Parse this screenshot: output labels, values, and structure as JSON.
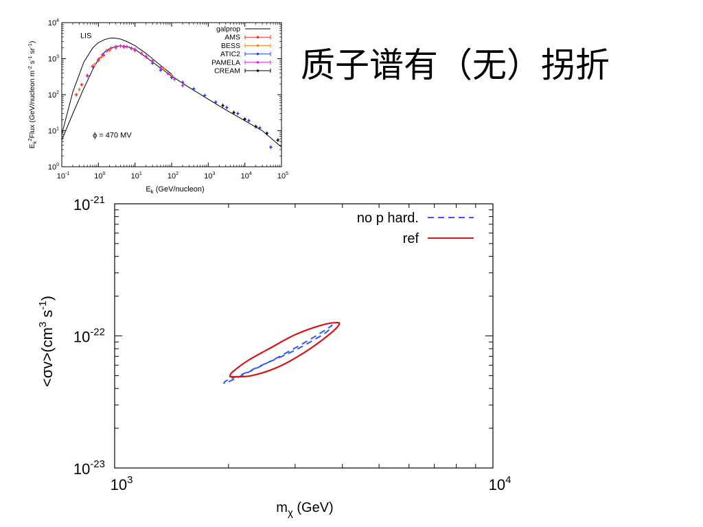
{
  "slide": {
    "title": "质子谱有（无）拐折"
  },
  "chart_data": [
    {
      "type": "scatter",
      "xlabel": "E_k (GeV/nucleon)",
      "ylabel": "E_k^2 Flux (GeV/nucleon m^-2 s^-1 sr^-1)",
      "xscale": "log",
      "yscale": "log",
      "xlim": [
        0.1,
        100000
      ],
      "ylim": [
        1,
        10000
      ],
      "xticks": [
        {
          "base": "10",
          "exp": "-1",
          "value": 0.1
        },
        {
          "base": "10",
          "exp": "0",
          "value": 1
        },
        {
          "base": "10",
          "exp": "1",
          "value": 10
        },
        {
          "base": "10",
          "exp": "2",
          "value": 100
        },
        {
          "base": "10",
          "exp": "3",
          "value": 1000
        },
        {
          "base": "10",
          "exp": "4",
          "value": 10000
        },
        {
          "base": "10",
          "exp": "5",
          "value": 100000
        }
      ],
      "yticks": [
        {
          "base": "10",
          "exp": "0",
          "value": 1
        },
        {
          "base": "10",
          "exp": "1",
          "value": 10
        },
        {
          "base": "10",
          "exp": "2",
          "value": 100
        },
        {
          "base": "10",
          "exp": "3",
          "value": 1000
        },
        {
          "base": "10",
          "exp": "4",
          "value": 10000
        }
      ],
      "annotations": [
        {
          "text": "LIS",
          "x": 0.32,
          "y": 3700
        },
        {
          "text": "ϕ = 470 MV",
          "x": 0.7,
          "y": 6.5
        }
      ],
      "legend_position": "top-right",
      "series": [
        {
          "name": "galprop",
          "kind": "line",
          "color": "#000000",
          "x": [
            0.1,
            0.2,
            0.4,
            0.7,
            1,
            1.5,
            2,
            3,
            4,
            6,
            10,
            20,
            50,
            100,
            300,
            1000,
            3000,
            10000,
            30000,
            100000
          ],
          "y": [
            5.5,
            30,
            150,
            500,
            950,
            1550,
            1900,
            2200,
            2250,
            2200,
            1800,
            1100,
            550,
            330,
            160,
            75,
            38,
            19,
            10,
            3.5
          ]
        },
        {
          "name": "",
          "kind": "line",
          "color": "#000000",
          "x": [
            0.1,
            0.2,
            0.4,
            0.7,
            1,
            1.5,
            2,
            2.5,
            3,
            4,
            6,
            10,
            20,
            50,
            100
          ],
          "y": [
            8,
            120,
            800,
            2000,
            2800,
            3400,
            3700,
            3750,
            3700,
            3500,
            3000,
            2300,
            1400,
            650,
            370
          ]
        },
        {
          "name": "AMS",
          "kind": "points",
          "color": "#ff2a1a",
          "marker": "triangle-down",
          "x": [
            0.25,
            0.35,
            0.5,
            0.7,
            1.0,
            1.4,
            2,
            3,
            5,
            10,
            20,
            50,
            100
          ],
          "y": [
            100,
            190,
            330,
            600,
            900,
            1250,
            1700,
            2000,
            2100,
            1700,
            1150,
            560,
            340
          ]
        },
        {
          "name": "BESS",
          "kind": "points",
          "color": "#ff8000",
          "marker": "triangle-up",
          "x": [
            0.3,
            0.5,
            0.8,
            1.2,
            2,
            3,
            5,
            8,
            15,
            30,
            60,
            100
          ],
          "y": [
            140,
            330,
            700,
            1100,
            1700,
            2050,
            2150,
            1900,
            1400,
            900,
            520,
            330
          ]
        },
        {
          "name": "ATIC2",
          "kind": "points",
          "color": "#2040ff",
          "marker": "circle",
          "x": [
            30,
            50,
            100,
            200,
            400,
            800,
            1600,
            3200,
            6400,
            12800,
            25600,
            51200
          ],
          "y": [
            750,
            480,
            300,
            220,
            145,
            95,
            62,
            44,
            30,
            19,
            12,
            3.5
          ]
        },
        {
          "name": "PAMELA",
          "kind": "points",
          "color": "#e020e0",
          "marker": "x",
          "x": [
            0.5,
            0.7,
            1,
            1.3,
            1.7,
            2.2,
            3,
            4,
            5,
            6,
            8,
            10,
            15,
            20,
            30,
            50,
            80,
            120,
            200
          ],
          "y": [
            340,
            620,
            950,
            1300,
            1650,
            1950,
            2150,
            2250,
            2200,
            2150,
            1950,
            1800,
            1400,
            1150,
            850,
            560,
            380,
            270,
            180
          ]
        },
        {
          "name": "CREAM",
          "kind": "points",
          "color": "#000000",
          "marker": "circle",
          "x": [
            2500,
            5000,
            10000,
            20000,
            40000,
            80000
          ],
          "y": [
            50,
            32,
            21,
            13,
            8.5,
            5.5
          ]
        }
      ]
    },
    {
      "type": "line",
      "xlabel": "m_χ (GeV)",
      "ylabel": "<σv>(cm^3 s^-1)",
      "xscale": "log",
      "yscale": "log",
      "xlim": [
        1000,
        10000
      ],
      "ylim": [
        1e-23,
        1e-21
      ],
      "xticks": [
        {
          "base": "10",
          "exp": "3",
          "value": 1000
        },
        {
          "base": "10",
          "exp": "4",
          "value": 10000
        }
      ],
      "yticks": [
        {
          "base": "10",
          "exp": "-23",
          "value": 1e-23
        },
        {
          "base": "10",
          "exp": "-22",
          "value": 1e-22
        },
        {
          "base": "10",
          "exp": "-21",
          "value": 1e-21
        }
      ],
      "legend_position": "top-right",
      "series": [
        {
          "name": "no p hard.",
          "color": "#3355ff",
          "dash": true,
          "closed": true,
          "x": [
            2000,
            2600,
            3200,
            3660,
            3750,
            3600,
            3000,
            2450,
            2200,
            1980
          ],
          "y": [
            4.5e-23,
            6.5e-23,
            9e-23,
            1.14e-22,
            1.2e-22,
            1.05e-22,
            7.8e-23,
            6e-23,
            5.2e-23,
            4.6e-23
          ]
        },
        {
          "name": "ref",
          "color": "#dd1111",
          "dash": false,
          "closed": true,
          "x": [
            2050,
            2300,
            2700,
            3200,
            3700,
            3920,
            3840,
            3500,
            3000,
            2600,
            2250,
            2060,
            2020
          ],
          "y": [
            4.9e-23,
            5e-23,
            5.8e-23,
            7.6e-23,
            1.03e-22,
            1.22e-22,
            1.26e-22,
            1.2e-22,
            1.02e-22,
            8.2e-23,
            6.5e-23,
            5.4e-23,
            5e-23
          ]
        }
      ]
    }
  ]
}
